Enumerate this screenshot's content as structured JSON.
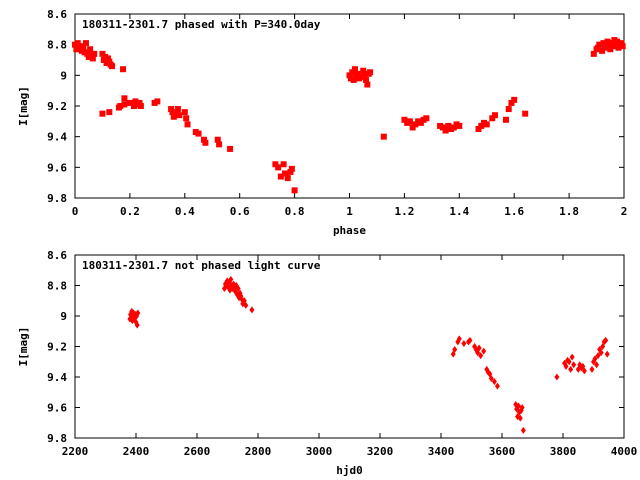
{
  "chart_data": [
    {
      "type": "scatter",
      "title": "180311-2301.7 phased with P=340.0day",
      "xlabel": "phase",
      "ylabel": "I[mag]",
      "xlim": [
        0,
        2
      ],
      "ylim": [
        8.6,
        9.8
      ],
      "y_inverted": true,
      "x_ticks": [
        {
          "v": 0,
          "label": "0"
        },
        {
          "v": 0.2,
          "label": "0.2"
        },
        {
          "v": 0.4,
          "label": "0.4"
        },
        {
          "v": 0.6,
          "label": "0.6"
        },
        {
          "v": 0.8,
          "label": "0.8"
        },
        {
          "v": 1,
          "label": "1"
        },
        {
          "v": 1.2,
          "label": "1.2"
        },
        {
          "v": 1.4,
          "label": "1.4"
        },
        {
          "v": 1.6,
          "label": "1.6"
        },
        {
          "v": 1.8,
          "label": "1.8"
        },
        {
          "v": 2,
          "label": "2"
        }
      ],
      "y_ticks": [
        {
          "v": 8.6,
          "label": "8.6"
        },
        {
          "v": 8.8,
          "label": "8.8"
        },
        {
          "v": 9,
          "label": "9"
        },
        {
          "v": 9.2,
          "label": "9.2"
        },
        {
          "v": 9.4,
          "label": "9.4"
        },
        {
          "v": 9.6,
          "label": "9.6"
        },
        {
          "v": 9.8,
          "label": "9.8"
        }
      ],
      "color": "#ff0000",
      "series": [
        {
          "marker": "square",
          "points": [
            [
              0.0,
              8.8
            ],
            [
              0.005,
              8.83
            ],
            [
              0.01,
              8.79
            ],
            [
              0.015,
              8.82
            ],
            [
              0.02,
              8.81
            ],
            [
              0.025,
              8.84
            ],
            [
              0.03,
              8.82
            ],
            [
              0.035,
              8.85
            ],
            [
              0.04,
              8.79
            ],
            [
              0.045,
              8.86
            ],
            [
              0.05,
              8.88
            ],
            [
              0.055,
              8.83
            ],
            [
              0.06,
              8.87
            ],
            [
              0.065,
              8.89
            ],
            [
              0.07,
              8.86
            ],
            [
              0.1,
              8.86
            ],
            [
              0.105,
              8.9
            ],
            [
              0.11,
              8.88
            ],
            [
              0.115,
              8.92
            ],
            [
              0.12,
              8.89
            ],
            [
              0.125,
              8.91
            ],
            [
              0.13,
              8.93
            ],
            [
              0.135,
              8.94
            ],
            [
              0.175,
              8.96
            ],
            [
              0.18,
              9.19
            ],
            [
              0.16,
              9.21
            ],
            [
              0.165,
              9.2
            ],
            [
              0.18,
              9.15
            ],
            [
              0.2,
              9.18
            ],
            [
              0.215,
              9.2
            ],
            [
              0.225,
              9.19
            ],
            [
              0.235,
              9.18
            ],
            [
              0.24,
              9.2
            ],
            [
              0.22,
              9.17
            ],
            [
              0.1,
              9.25
            ],
            [
              0.125,
              9.24
            ],
            [
              0.29,
              9.18
            ],
            [
              0.3,
              9.17
            ],
            [
              0.35,
              9.22
            ],
            [
              0.355,
              9.24
            ],
            [
              0.36,
              9.27
            ],
            [
              0.37,
              9.25
            ],
            [
              0.375,
              9.22
            ],
            [
              0.38,
              9.26
            ],
            [
              0.4,
              9.24
            ],
            [
              0.405,
              9.28
            ],
            [
              0.41,
              9.32
            ],
            [
              0.44,
              9.37
            ],
            [
              0.45,
              9.38
            ],
            [
              0.47,
              9.42
            ],
            [
              0.475,
              9.44
            ],
            [
              0.52,
              9.42
            ],
            [
              0.525,
              9.45
            ],
            [
              0.565,
              9.48
            ],
            [
              0.73,
              9.58
            ],
            [
              0.74,
              9.6
            ],
            [
              0.75,
              9.66
            ],
            [
              0.76,
              9.58
            ],
            [
              0.765,
              9.64
            ],
            [
              0.775,
              9.67
            ],
            [
              0.785,
              9.63
            ],
            [
              0.79,
              9.61
            ],
            [
              0.8,
              9.75
            ],
            [
              1.0,
              9.0
            ],
            [
              1.005,
              9.02
            ],
            [
              1.01,
              8.98
            ],
            [
              1.015,
              9.03
            ],
            [
              1.02,
              8.96
            ],
            [
              1.025,
              9.01
            ],
            [
              1.03,
              8.99
            ],
            [
              1.035,
              9.02
            ],
            [
              1.04,
              9.01
            ],
            [
              1.05,
              8.97
            ],
            [
              1.055,
              9.0
            ],
            [
              1.06,
              9.03
            ],
            [
              1.065,
              9.06
            ],
            [
              1.07,
              8.99
            ],
            [
              1.075,
              8.98
            ],
            [
              1.125,
              9.4
            ],
            [
              1.2,
              9.29
            ],
            [
              1.21,
              9.31
            ],
            [
              1.22,
              9.3
            ],
            [
              1.23,
              9.34
            ],
            [
              1.24,
              9.32
            ],
            [
              1.25,
              9.3
            ],
            [
              1.26,
              9.31
            ],
            [
              1.27,
              9.29
            ],
            [
              1.28,
              9.28
            ],
            [
              1.33,
              9.33
            ],
            [
              1.34,
              9.34
            ],
            [
              1.35,
              9.36
            ],
            [
              1.36,
              9.33
            ],
            [
              1.37,
              9.35
            ],
            [
              1.38,
              9.34
            ],
            [
              1.39,
              9.32
            ],
            [
              1.4,
              9.33
            ],
            [
              1.47,
              9.35
            ],
            [
              1.48,
              9.33
            ],
            [
              1.49,
              9.31
            ],
            [
              1.5,
              9.32
            ],
            [
              1.52,
              9.28
            ],
            [
              1.53,
              9.26
            ],
            [
              1.57,
              9.29
            ],
            [
              1.58,
              9.22
            ],
            [
              1.59,
              9.18
            ],
            [
              1.6,
              9.16
            ],
            [
              1.64,
              9.25
            ],
            [
              1.89,
              8.86
            ],
            [
              1.9,
              8.83
            ],
            [
              1.905,
              8.82
            ],
            [
              1.91,
              8.8
            ],
            [
              1.92,
              8.84
            ],
            [
              1.925,
              8.79
            ],
            [
              1.93,
              8.82
            ],
            [
              1.935,
              8.81
            ],
            [
              1.94,
              8.78
            ],
            [
              1.945,
              8.8
            ],
            [
              1.95,
              8.83
            ],
            [
              1.955,
              8.79
            ],
            [
              1.96,
              8.81
            ],
            [
              1.965,
              8.77
            ],
            [
              1.97,
              8.8
            ],
            [
              1.975,
              8.78
            ],
            [
              1.98,
              8.82
            ],
            [
              1.985,
              8.8
            ],
            [
              1.99,
              8.79
            ],
            [
              1.995,
              8.81
            ]
          ]
        }
      ]
    },
    {
      "type": "scatter",
      "title": "180311-2301.7 not phased light curve",
      "xlabel": "hjd0",
      "ylabel": "I[mag]",
      "xlim": [
        2200,
        4000
      ],
      "ylim": [
        8.6,
        9.8
      ],
      "y_inverted": true,
      "x_ticks": [
        {
          "v": 2200,
          "label": "2200"
        },
        {
          "v": 2400,
          "label": "2400"
        },
        {
          "v": 2600,
          "label": "2600"
        },
        {
          "v": 2800,
          "label": "2800"
        },
        {
          "v": 3000,
          "label": "3000"
        },
        {
          "v": 3200,
          "label": "3200"
        },
        {
          "v": 3400,
          "label": "3400"
        },
        {
          "v": 3600,
          "label": "3600"
        },
        {
          "v": 3800,
          "label": "3800"
        },
        {
          "v": 4000,
          "label": "4000"
        }
      ],
      "y_ticks": [
        {
          "v": 8.6,
          "label": "8.6"
        },
        {
          "v": 8.8,
          "label": "8.8"
        },
        {
          "v": 9,
          "label": "9"
        },
        {
          "v": 9.2,
          "label": "9.2"
        },
        {
          "v": 9.4,
          "label": "9.4"
        },
        {
          "v": 9.6,
          "label": "9.6"
        },
        {
          "v": 9.8,
          "label": "9.8"
        }
      ],
      "color": "#ff0000",
      "series": [
        {
          "marker": "diamond",
          "points": [
            [
              2380,
              9.02
            ],
            [
              2382,
              8.99
            ],
            [
              2384,
              9.01
            ],
            [
              2386,
              8.97
            ],
            [
              2388,
              9.03
            ],
            [
              2390,
              9.0
            ],
            [
              2392,
              8.98
            ],
            [
              2394,
              9.02
            ],
            [
              2396,
              9.01
            ],
            [
              2398,
              8.99
            ],
            [
              2400,
              9.04
            ],
            [
              2402,
              9.0
            ],
            [
              2404,
              9.06
            ],
            [
              2406,
              8.98
            ],
            [
              2690,
              8.82
            ],
            [
              2693,
              8.79
            ],
            [
              2696,
              8.8
            ],
            [
              2699,
              8.77
            ],
            [
              2702,
              8.81
            ],
            [
              2705,
              8.78
            ],
            [
              2708,
              8.83
            ],
            [
              2711,
              8.76
            ],
            [
              2714,
              8.8
            ],
            [
              2717,
              8.82
            ],
            [
              2720,
              8.79
            ],
            [
              2723,
              8.81
            ],
            [
              2726,
              8.84
            ],
            [
              2729,
              8.8
            ],
            [
              2732,
              8.86
            ],
            [
              2735,
              8.82
            ],
            [
              2738,
              8.88
            ],
            [
              2741,
              8.85
            ],
            [
              2744,
              8.87
            ],
            [
              2747,
              8.89
            ],
            [
              2750,
              8.92
            ],
            [
              2755,
              8.9
            ],
            [
              2760,
              8.93
            ],
            [
              2780,
              8.96
            ],
            [
              3440,
              9.25
            ],
            [
              3445,
              9.22
            ],
            [
              3455,
              9.17
            ],
            [
              3460,
              9.15
            ],
            [
              3475,
              9.18
            ],
            [
              3490,
              9.17
            ],
            [
              3495,
              9.16
            ],
            [
              3510,
              9.2
            ],
            [
              3515,
              9.22
            ],
            [
              3520,
              9.24
            ],
            [
              3525,
              9.21
            ],
            [
              3530,
              9.26
            ],
            [
              3540,
              9.23
            ],
            [
              3550,
              9.35
            ],
            [
              3555,
              9.37
            ],
            [
              3560,
              9.38
            ],
            [
              3565,
              9.41
            ],
            [
              3575,
              9.43
            ],
            [
              3585,
              9.46
            ],
            [
              3645,
              9.58
            ],
            [
              3648,
              9.61
            ],
            [
              3651,
              9.66
            ],
            [
              3654,
              9.59
            ],
            [
              3657,
              9.63
            ],
            [
              3660,
              9.67
            ],
            [
              3663,
              9.62
            ],
            [
              3666,
              9.6
            ],
            [
              3670,
              9.75
            ],
            [
              3780,
              9.4
            ],
            [
              3805,
              9.31
            ],
            [
              3810,
              9.33
            ],
            [
              3815,
              9.29
            ],
            [
              3820,
              9.3
            ],
            [
              3825,
              9.35
            ],
            [
              3830,
              9.27
            ],
            [
              3835,
              9.32
            ],
            [
              3850,
              9.35
            ],
            [
              3855,
              9.32
            ],
            [
              3860,
              9.34
            ],
            [
              3865,
              9.33
            ],
            [
              3870,
              9.36
            ],
            [
              3895,
              9.35
            ],
            [
              3900,
              9.3
            ],
            [
              3905,
              9.28
            ],
            [
              3910,
              9.32
            ],
            [
              3915,
              9.26
            ],
            [
              3920,
              9.22
            ],
            [
              3925,
              9.24
            ],
            [
              3930,
              9.2
            ],
            [
              3935,
              9.17
            ],
            [
              3940,
              9.16
            ],
            [
              3945,
              9.25
            ]
          ]
        }
      ]
    }
  ]
}
